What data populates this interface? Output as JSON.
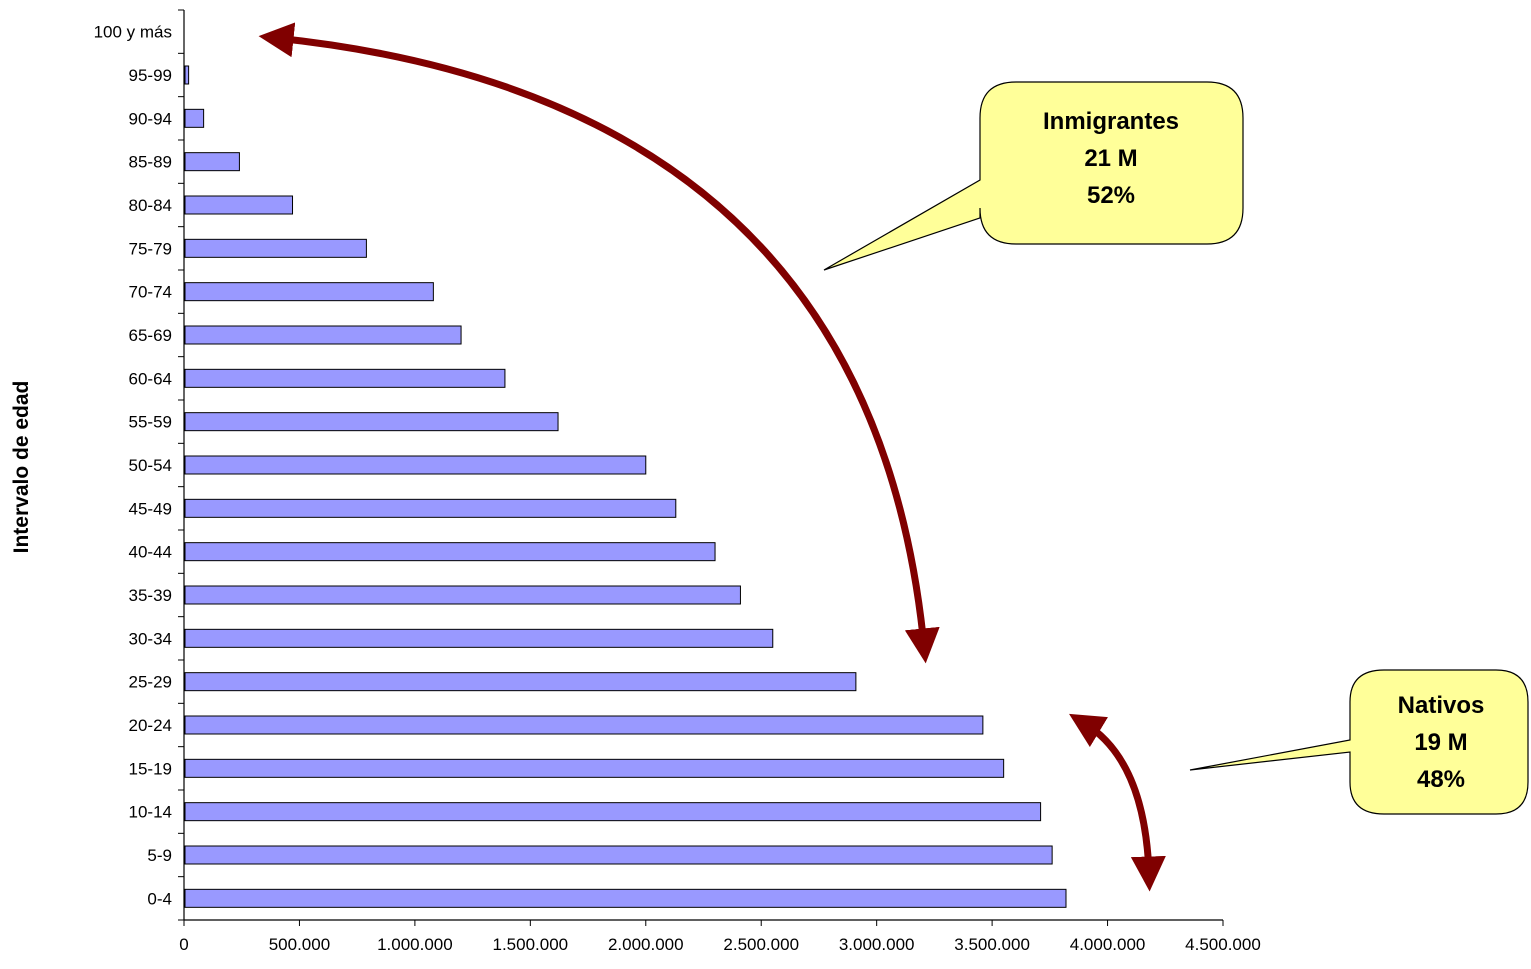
{
  "chart_data": {
    "type": "bar",
    "orientation": "horizontal",
    "ylabel": "Intervalo de edad",
    "xlabel": "",
    "categories": [
      "0-4",
      "5-9",
      "10-14",
      "15-19",
      "20-24",
      "25-29",
      "30-34",
      "35-39",
      "40-44",
      "45-49",
      "50-54",
      "55-59",
      "60-64",
      "65-69",
      "70-74",
      "75-79",
      "80-84",
      "85-89",
      "90-94",
      "95-99",
      "100 y más"
    ],
    "values": [
      3820000,
      3760000,
      3710000,
      3550000,
      3460000,
      2910000,
      2550000,
      2410000,
      2300000,
      2130000,
      2000000,
      1620000,
      1390000,
      1200000,
      1080000,
      790000,
      470000,
      240000,
      85000,
      20000,
      0
    ],
    "xlim": [
      0,
      4500000
    ],
    "xticks": [
      0,
      500000,
      1000000,
      1500000,
      2000000,
      2500000,
      3000000,
      3500000,
      4000000,
      4500000
    ],
    "xtick_labels": [
      "0",
      "500.000",
      "1.000.000",
      "1.500.000",
      "2.000.000",
      "2.500.000",
      "3.000.000",
      "3.500.000",
      "4.000.000",
      "4.500.000"
    ],
    "bar_color": "#9999ff",
    "bar_edge_color": "#000000",
    "grid": false,
    "legend": "none",
    "annotations": [
      {
        "label": "Inmigrantes",
        "value": "21 M",
        "pct": "52%",
        "fill": "#ffff99"
      },
      {
        "label": "Nativos",
        "value": "19 M",
        "pct": "48%",
        "fill": "#ffff99"
      }
    ],
    "arrow_color": "#800000"
  }
}
